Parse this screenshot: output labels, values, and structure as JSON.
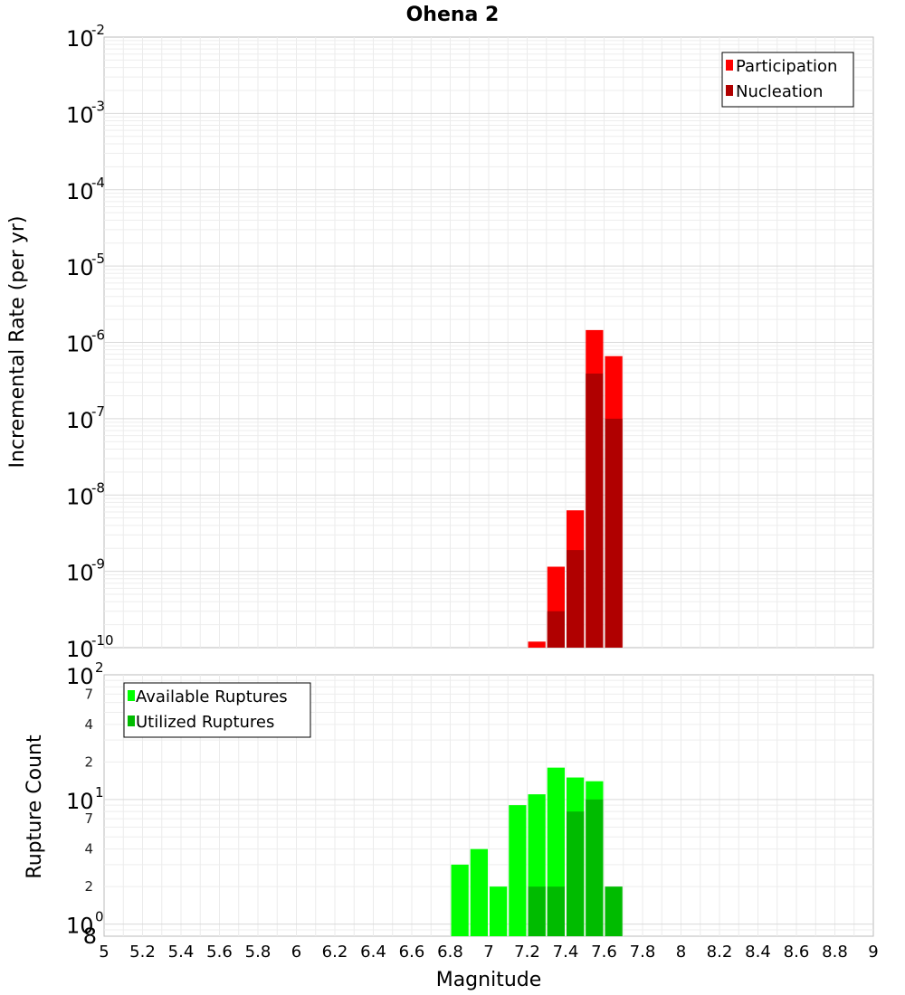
{
  "chart_data": [
    {
      "type": "bar",
      "title": "Ohena 2",
      "xlabel": "Magnitude",
      "ylabel": "Incremental Rate (per yr)",
      "yscale": "log",
      "xlim": [
        5,
        9
      ],
      "ylim": [
        1e-10,
        0.01
      ],
      "y_ticks": [
        {
          "base": "10",
          "exp": "-2",
          "value": 0.01
        },
        {
          "base": "10",
          "exp": "-3",
          "value": 0.001
        },
        {
          "base": "10",
          "exp": "-4",
          "value": 0.0001
        },
        {
          "base": "10",
          "exp": "-5",
          "value": 1e-05
        },
        {
          "base": "10",
          "exp": "-6",
          "value": 1e-06
        },
        {
          "base": "10",
          "exp": "-7",
          "value": 1e-07
        },
        {
          "base": "10",
          "exp": "-8",
          "value": 1e-08
        },
        {
          "base": "10",
          "exp": "-9",
          "value": 1e-09
        },
        {
          "base": "10",
          "exp": "-10",
          "value": 1e-10
        }
      ],
      "legend": {
        "position": "top-right"
      },
      "bin_width": 0.1,
      "series": [
        {
          "name": "Participation",
          "color": "#ff0000",
          "points": [
            {
              "x": 7.25,
              "y": 1.2e-10
            },
            {
              "x": 7.35,
              "y": 1.15e-09
            },
            {
              "x": 7.45,
              "y": 6.3e-09
            },
            {
              "x": 7.55,
              "y": 1.45e-06
            },
            {
              "x": 7.65,
              "y": 6.6e-07
            }
          ]
        },
        {
          "name": "Nucleation",
          "color": "#b00000",
          "points": [
            {
              "x": 7.35,
              "y": 3e-10
            },
            {
              "x": 7.45,
              "y": 1.9e-09
            },
            {
              "x": 7.55,
              "y": 3.9e-07
            },
            {
              "x": 7.65,
              "y": 1e-07
            }
          ]
        }
      ]
    },
    {
      "type": "bar",
      "title": "",
      "xlabel": "Magnitude",
      "ylabel": "Rupture Count",
      "yscale": "log",
      "xlim": [
        5,
        9
      ],
      "ylim": [
        0.8,
        100
      ],
      "x_ticks": [
        "5",
        "5.2",
        "5.4",
        "5.6",
        "5.8",
        "6",
        "6.2",
        "6.4",
        "6.6",
        "6.8",
        "7",
        "7.2",
        "7.4",
        "7.6",
        "7.8",
        "8",
        "8.2",
        "8.4",
        "8.6",
        "8.8",
        "9"
      ],
      "y_major_ticks": [
        {
          "base": "10",
          "exp": "2",
          "value": 100
        },
        {
          "base": "10",
          "exp": "1",
          "value": 10
        },
        {
          "base": "10",
          "exp": "0",
          "value": 1
        }
      ],
      "y_minor_ticks": [
        {
          "label": "7",
          "value": 70
        },
        {
          "label": "4",
          "value": 40
        },
        {
          "label": "2",
          "value": 20
        },
        {
          "label": "7",
          "value": 7
        },
        {
          "label": "4",
          "value": 4
        },
        {
          "label": "2",
          "value": 2
        },
        {
          "label": "8",
          "value": 0.8
        }
      ],
      "legend": {
        "position": "top-left"
      },
      "bin_width": 0.1,
      "series": [
        {
          "name": "Available Ruptures",
          "color": "#00ff00",
          "points": [
            {
              "x": 6.85,
              "y": 3
            },
            {
              "x": 6.95,
              "y": 4
            },
            {
              "x": 7.05,
              "y": 2
            },
            {
              "x": 7.15,
              "y": 9
            },
            {
              "x": 7.25,
              "y": 11
            },
            {
              "x": 7.35,
              "y": 18
            },
            {
              "x": 7.45,
              "y": 15
            },
            {
              "x": 7.55,
              "y": 14
            }
          ]
        },
        {
          "name": "Utilized Ruptures",
          "color": "#00bb00",
          "points": [
            {
              "x": 7.25,
              "y": 2
            },
            {
              "x": 7.35,
              "y": 2
            },
            {
              "x": 7.45,
              "y": 8
            },
            {
              "x": 7.55,
              "y": 10
            },
            {
              "x": 7.65,
              "y": 2
            }
          ]
        }
      ]
    }
  ]
}
